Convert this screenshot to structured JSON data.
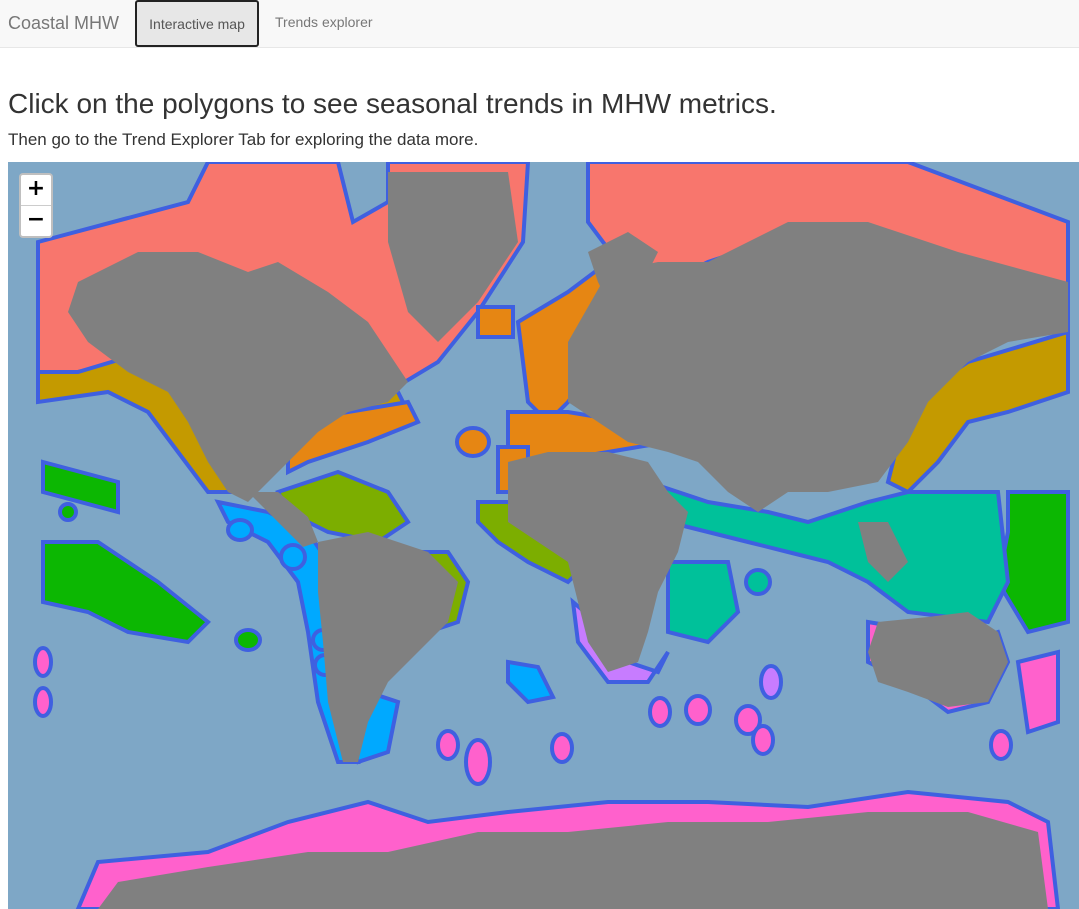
{
  "navbar": {
    "brand": "Coastal MHW",
    "tabs": [
      {
        "label": "Interactive map",
        "active": true
      },
      {
        "label": "Trends explorer",
        "active": false
      }
    ]
  },
  "page": {
    "heading": "Click on the polygons to see seasonal trends in MHW metrics.",
    "subheading": "Then go to the Trend Explorer Tab for exploring the data more."
  },
  "map": {
    "zoom_in_label": "+",
    "zoom_out_label": "−",
    "ocean_color": "#7ea7c6",
    "land_color": "#808080",
    "region_colors": {
      "arctic": "#f8766d",
      "north_temperate": "#c49a00",
      "north_atlantic_europe": "#e68613",
      "tropical_americas": "#7cae00",
      "tropical_pacific_islands": "#0cb702",
      "indo_pacific": "#00c19a",
      "eastern_pacific_south_america": "#00a9ff",
      "southern_ocean": "#ff61cc",
      "southern_africa_australia": "#c77cff",
      "polygon_outline": "#3f60e0"
    }
  }
}
